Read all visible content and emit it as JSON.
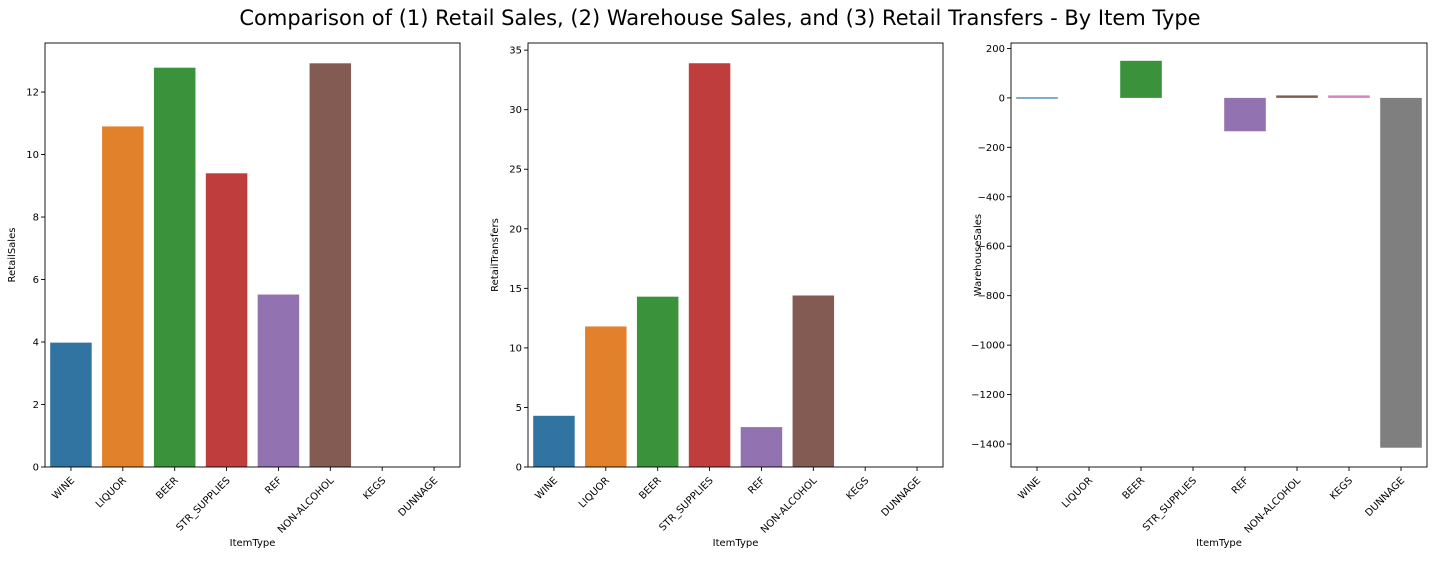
{
  "figure": {
    "title": "Comparison of (1) Retail Sales, (2) Warehouse Sales, and (3) Retail Transfers - By Item Type"
  },
  "chart_data": [
    {
      "type": "bar",
      "title": "",
      "xlabel": "ItemType",
      "ylabel": "RetailSales",
      "categories": [
        "WINE",
        "LIQUOR",
        "BEER",
        "STR_SUPPLIES",
        "REF",
        "NON-ALCOHOL",
        "KEGS",
        "DUNNAGE"
      ],
      "values": [
        3.98,
        10.9,
        12.78,
        9.4,
        5.52,
        12.92,
        0,
        0
      ],
      "colors": [
        "#3274a1",
        "#e1812c",
        "#3a923a",
        "#c03d3e",
        "#9372b2",
        "#845b53",
        "#d684bd",
        "#7f7f7f"
      ],
      "ylim": [
        0,
        13.57
      ],
      "yticks": [
        0,
        2,
        4,
        6,
        8,
        10,
        12
      ],
      "grid": false
    },
    {
      "type": "bar",
      "title": "",
      "xlabel": "ItemType",
      "ylabel": "RetailTransfers",
      "categories": [
        "WINE",
        "LIQUOR",
        "BEER",
        "STR_SUPPLIES",
        "REF",
        "NON-ALCOHOL",
        "KEGS",
        "DUNNAGE"
      ],
      "values": [
        4.3,
        11.8,
        14.3,
        33.9,
        3.35,
        14.4,
        0,
        0
      ],
      "colors": [
        "#3274a1",
        "#e1812c",
        "#3a923a",
        "#c03d3e",
        "#9372b2",
        "#845b53",
        "#d684bd",
        "#7f7f7f"
      ],
      "ylim": [
        0,
        35.6
      ],
      "yticks": [
        0,
        5,
        10,
        15,
        20,
        25,
        30,
        35
      ],
      "grid": false
    },
    {
      "type": "bar",
      "title": "",
      "xlabel": "ItemType",
      "ylabel": "WarehouseSales",
      "categories": [
        "WINE",
        "LIQUOR",
        "BEER",
        "STR_SUPPLIES",
        "REF",
        "NON-ALCOHOL",
        "KEGS",
        "DUNNAGE"
      ],
      "values": [
        2,
        0,
        150,
        0,
        -135,
        10,
        10,
        -1415
      ],
      "colors": [
        "#3274a1",
        "#e1812c",
        "#3a923a",
        "#c03d3e",
        "#9372b2",
        "#845b53",
        "#d684bd",
        "#7f7f7f"
      ],
      "ylim": [
        -1493,
        222
      ],
      "yticks": [
        -1400,
        -1200,
        -1000,
        -800,
        -600,
        -400,
        -200,
        0,
        200
      ],
      "grid": false
    }
  ]
}
